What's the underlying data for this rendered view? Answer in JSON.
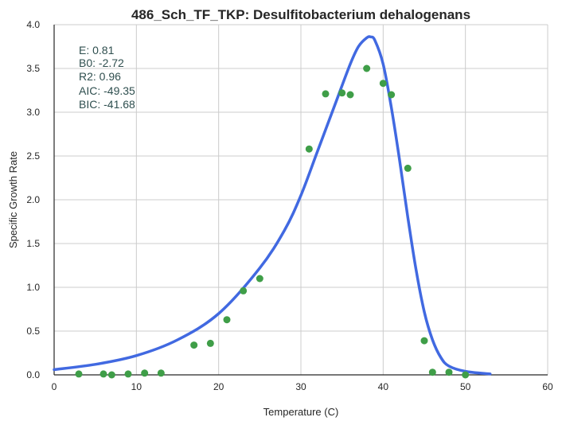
{
  "chart_data": {
    "type": "scatter",
    "title": "486_Sch_TF_TKP: Desulfitobacterium dehalogenans",
    "xlabel": "Temperature (C)",
    "ylabel": "Specific Growth Rate",
    "xlim": [
      0,
      60
    ],
    "ylim": [
      0,
      4.0
    ],
    "xticks": [
      0,
      10,
      20,
      30,
      40,
      50,
      60
    ],
    "xtick_labels": [
      "0",
      "10",
      "20",
      "30",
      "40",
      "50",
      "60"
    ],
    "yticks": [
      0.0,
      0.5,
      1.0,
      1.5,
      2.0,
      2.5,
      3.0,
      3.5,
      4.0
    ],
    "ytick_labels": [
      "0.0",
      "0.5",
      "1.0",
      "1.5",
      "2.0",
      "2.5",
      "3.0",
      "3.5",
      "4.0"
    ],
    "grid": true,
    "point_color": "#3f9e48",
    "line_color": "#4169e1",
    "points": [
      {
        "x": 3,
        "y": 0.01
      },
      {
        "x": 6,
        "y": 0.01
      },
      {
        "x": 7,
        "y": 0.0
      },
      {
        "x": 9,
        "y": 0.01
      },
      {
        "x": 11,
        "y": 0.02
      },
      {
        "x": 13,
        "y": 0.02
      },
      {
        "x": 17,
        "y": 0.34
      },
      {
        "x": 19,
        "y": 0.36
      },
      {
        "x": 21,
        "y": 0.63
      },
      {
        "x": 23,
        "y": 0.96
      },
      {
        "x": 25,
        "y": 1.1
      },
      {
        "x": 31,
        "y": 2.58
      },
      {
        "x": 33,
        "y": 3.21
      },
      {
        "x": 35,
        "y": 3.22
      },
      {
        "x": 36,
        "y": 3.2
      },
      {
        "x": 38,
        "y": 3.5
      },
      {
        "x": 40,
        "y": 3.33
      },
      {
        "x": 41,
        "y": 3.2
      },
      {
        "x": 43,
        "y": 2.36
      },
      {
        "x": 45,
        "y": 0.39
      },
      {
        "x": 46,
        "y": 0.03
      },
      {
        "x": 48,
        "y": 0.03
      },
      {
        "x": 50,
        "y": 0.0
      }
    ],
    "fit_curve": {
      "x": [
        0,
        5,
        10,
        15,
        20,
        25,
        28,
        30,
        32,
        34,
        36,
        37,
        38,
        38.5,
        39,
        40,
        41,
        42,
        43,
        44,
        45,
        46,
        47,
        48,
        50,
        53
      ],
      "y": [
        0.06,
        0.12,
        0.22,
        0.4,
        0.7,
        1.22,
        1.65,
        2.05,
        2.55,
        3.05,
        3.55,
        3.75,
        3.85,
        3.86,
        3.82,
        3.55,
        3.05,
        2.45,
        1.8,
        1.2,
        0.72,
        0.4,
        0.2,
        0.1,
        0.04,
        0.01
      ]
    },
    "annotations": [
      "E:  0.81",
      "B0:  -2.72",
      "R2:  0.96",
      "AIC: -49.35",
      "BIC: -41.68"
    ]
  }
}
